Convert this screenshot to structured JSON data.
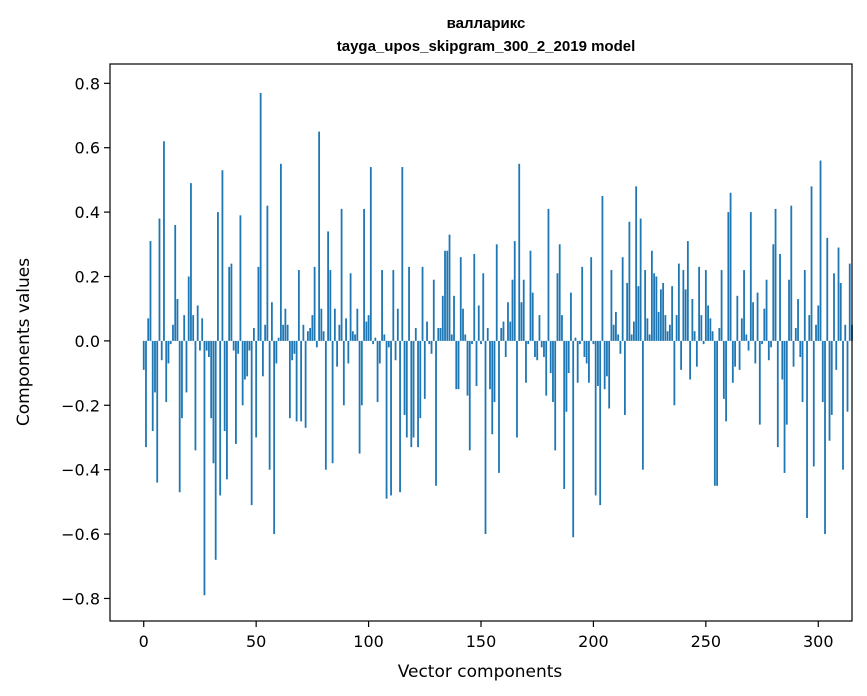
{
  "chart_data": {
    "type": "bar",
    "title": "валларикс",
    "subtitle": "tayga_upos_skipgram_300_2_2019 model",
    "xlabel": "Vector components",
    "ylabel": "Components values",
    "xlim": [
      -15,
      315
    ],
    "ylim": [
      -0.87,
      0.86
    ],
    "xticks": [
      0,
      50,
      100,
      150,
      200,
      250,
      300
    ],
    "yticks": [
      -0.8,
      -0.6,
      -0.4,
      -0.2,
      0.0,
      0.2,
      0.4,
      0.6,
      0.8
    ],
    "xtick_labels": [
      "0",
      "50",
      "100",
      "150",
      "200",
      "250",
      "300"
    ],
    "ytick_labels": [
      "−0.8",
      "−0.6",
      "−0.4",
      "−0.2",
      "0.0",
      "0.2",
      "0.4",
      "0.6",
      "0.8"
    ],
    "grid": false,
    "bar_color": "#1f77b4",
    "values": [
      -0.09,
      -0.33,
      0.07,
      0.31,
      -0.28,
      -0.16,
      -0.44,
      0.38,
      -0.06,
      0.62,
      -0.19,
      -0.07,
      -0.01,
      0.05,
      0.36,
      0.13,
      -0.47,
      -0.24,
      0.08,
      -0.16,
      0.2,
      0.49,
      0.08,
      -0.34,
      0.11,
      -0.03,
      0.07,
      -0.79,
      -0.03,
      -0.05,
      -0.24,
      -0.38,
      -0.68,
      0.4,
      -0.48,
      0.53,
      -0.28,
      -0.43,
      0.23,
      0.24,
      -0.03,
      -0.32,
      -0.04,
      0.39,
      -0.2,
      -0.12,
      -0.11,
      -0.03,
      -0.51,
      0.04,
      -0.3,
      0.23,
      0.77,
      -0.11,
      0.05,
      0.42,
      -0.4,
      0.12,
      -0.6,
      -0.07,
      0.01,
      0.55,
      0.05,
      0.1,
      0.05,
      -0.24,
      -0.06,
      -0.04,
      -0.25,
      0.22,
      -0.25,
      0.05,
      -0.27,
      0.03,
      0.04,
      0.08,
      0.23,
      -0.02,
      0.65,
      0.1,
      0.03,
      -0.4,
      0.34,
      0.22,
      -0.38,
      0.1,
      -0.08,
      0.05,
      0.41,
      -0.2,
      0.07,
      -0.07,
      0.21,
      0.03,
      0.02,
      0.1,
      -0.35,
      -0.2,
      0.41,
      0.06,
      0.08,
      0.54,
      -0.01,
      0.01,
      -0.19,
      -0.07,
      0.22,
      0.02,
      -0.49,
      -0.02,
      -0.48,
      0.22,
      -0.06,
      0.1,
      -0.47,
      0.54,
      -0.23,
      -0.3,
      0.23,
      -0.33,
      -0.3,
      0.04,
      -0.33,
      -0.24,
      0.23,
      -0.18,
      0.06,
      -0.01,
      -0.04,
      0.19,
      -0.45,
      0.04,
      0.04,
      0.14,
      0.28,
      0.28,
      0.33,
      0.02,
      0.14,
      -0.15,
      -0.15,
      0.26,
      0.1,
      0.02,
      -0.17,
      -0.34,
      -0.01,
      0.27,
      -0.14,
      0.11,
      -0.01,
      0.21,
      -0.6,
      0.04,
      -0.15,
      -0.29,
      -0.19,
      0.3,
      -0.41,
      0.04,
      0.06,
      -0.05,
      0.12,
      0.06,
      0.19,
      0.31,
      -0.3,
      0.55,
      0.12,
      0.19,
      -0.13,
      -0.01,
      0.28,
      0.15,
      -0.05,
      -0.06,
      0.08,
      -0.02,
      -0.05,
      -0.17,
      0.41,
      -0.1,
      -0.19,
      -0.34,
      0.21,
      0.3,
      0.08,
      -0.46,
      -0.22,
      -0.1,
      0.15,
      -0.61,
      0.01,
      -0.13,
      -0.01,
      0.23,
      -0.05,
      -0.07,
      -0.13,
      0.26,
      -0.01,
      -0.48,
      -0.14,
      -0.51,
      0.45,
      -0.15,
      -0.11,
      -0.21,
      0.22,
      0.05,
      0.09,
      0.02,
      -0.04,
      0.26,
      -0.23,
      0.18,
      0.37,
      0.02,
      0.06,
      0.48,
      0.17,
      0.38,
      -0.4,
      0.22,
      0.07,
      0.02,
      0.28,
      0.21,
      0.2,
      0.09,
      0.16,
      0.18,
      0.08,
      0.03,
      0.05,
      0.17,
      -0.2,
      0.08,
      0.24,
      -0.09,
      0.22,
      0.16,
      0.31,
      -0.12,
      0.13,
      0.03,
      -0.08,
      0.23,
      0.08,
      -0.01,
      0.22,
      0.11,
      0.07,
      0.03,
      -0.45,
      -0.45,
      0.04,
      0.22,
      -0.18,
      -0.25,
      0.4,
      0.46,
      -0.13,
      -0.08,
      0.14,
      -0.09,
      0.07,
      0.22,
      0.02,
      -0.03,
      0.4,
      0.12,
      -0.07,
      0.15,
      -0.26,
      -0.01,
      0.1,
      0.19,
      -0.06,
      -0.02,
      0.3,
      0.41,
      -0.33,
      0.27,
      -0.12,
      -0.41,
      -0.26,
      0.19,
      0.42,
      -0.08,
      0.04,
      0.13,
      -0.05,
      -0.19,
      0.22,
      -0.55,
      0.08,
      0.48,
      -0.39,
      0.05,
      0.11,
      0.56,
      -0.19,
      -0.6,
      0.32,
      -0.31,
      -0.23,
      0.21,
      -0.09,
      0.29,
      0.18,
      -0.4,
      0.05,
      -0.22,
      0.24,
      0.05
    ]
  }
}
